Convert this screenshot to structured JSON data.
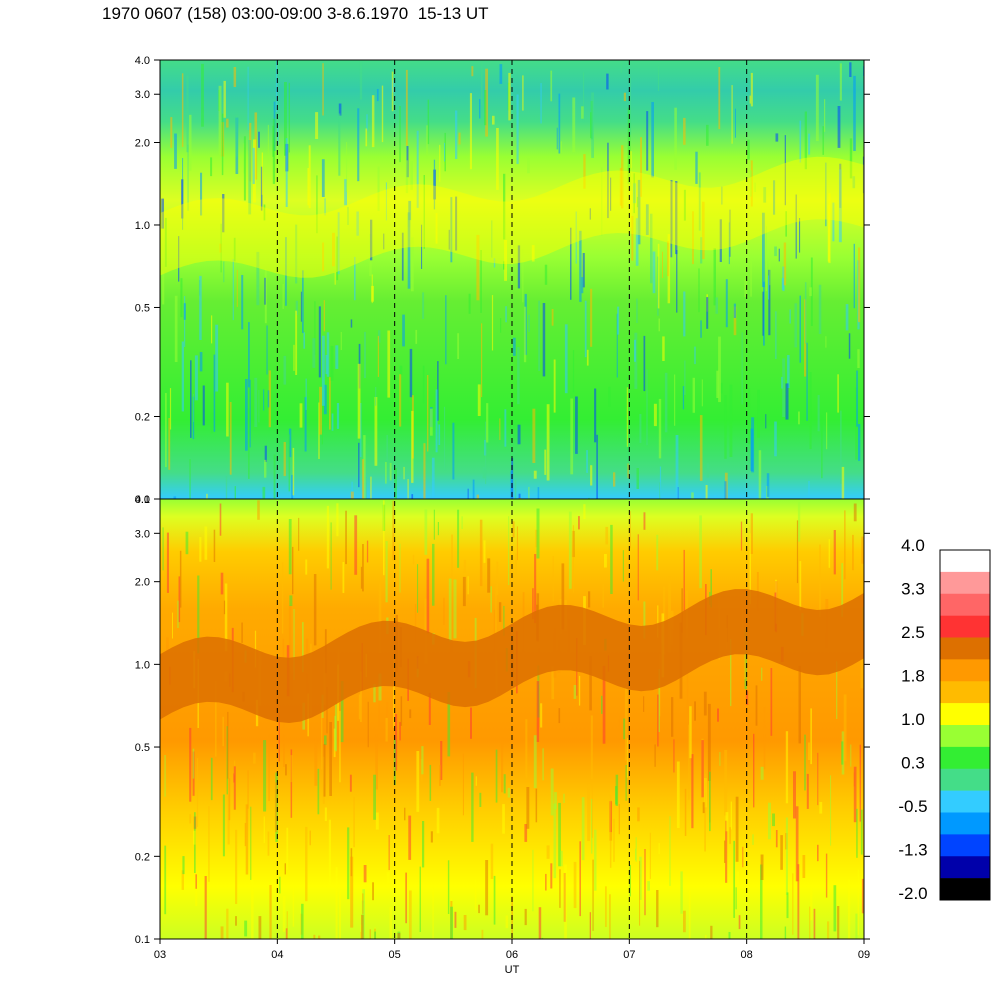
{
  "title": "1970 0607 (158) 03:00-09:00 3-8.6.1970  15-13 UT",
  "chart_data": [
    {
      "type": "heatmap",
      "panel": "upper",
      "y_scale": "log",
      "ylim": [
        0.1,
        4.0
      ],
      "y_tick_labels": [
        "0.1",
        "0.2",
        "0.5",
        "1.0",
        "2.0",
        "3.0",
        "4.0"
      ],
      "y_ticks": [
        0.1,
        0.2,
        0.5,
        1.0,
        2.0,
        3.0,
        4.0
      ],
      "xlim": [
        "03",
        "09"
      ],
      "vertical_dashed_lines_at": [
        "04",
        "05",
        "06",
        "07",
        "08"
      ],
      "dominant_levels": "0.3 (green) at low frequencies, 1.0 (yellow) near 0.6-1.5, -0.5 (cyan/blue) above 2.0"
    },
    {
      "type": "heatmap",
      "panel": "lower",
      "y_scale": "log",
      "ylim": [
        0.1,
        4.0
      ],
      "y_tick_labels": [
        "0.1",
        "0.2",
        "0.5",
        "1.0",
        "2.0",
        "3.0",
        "4.0"
      ],
      "y_ticks": [
        0.1,
        0.2,
        0.5,
        1.0,
        2.0,
        3.0,
        4.0
      ],
      "xlim": [
        "03",
        "09"
      ],
      "x_tick_labels": [
        "03",
        "04",
        "05",
        "06",
        "07",
        "08",
        "09"
      ],
      "xlabel": "UT",
      "vertical_dashed_lines_at": [
        "04",
        "05",
        "06",
        "07",
        "08"
      ],
      "dominant_levels": "2.1 (dark orange) band rising from ~0.7 to ~1.4, 1.8 (orange) around it, 1.0 (yellow) at top and bottom"
    }
  ],
  "colorbar": {
    "labels": [
      "4.0",
      "3.3",
      "2.5",
      "1.8",
      "1.0",
      "0.3",
      "-0.5",
      "-1.3",
      "-2.0"
    ],
    "colors": [
      "#ffffff",
      "#ff9999",
      "#ff6666",
      "#ff3333",
      "#dd7000",
      "#ff9900",
      "#ffbb00",
      "#ffff00",
      "#99ff33",
      "#33ee33",
      "#44dd88",
      "#33ccff",
      "#0099ff",
      "#0044ff",
      "#0000aa",
      "#000000"
    ]
  }
}
